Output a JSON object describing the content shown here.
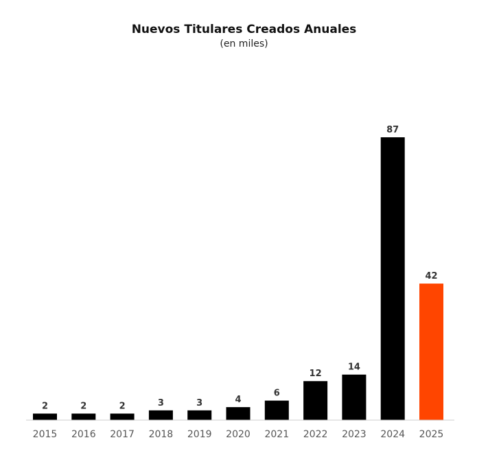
{
  "chart_data": {
    "type": "bar",
    "title": "Nuevos Titulares Creados Anuales",
    "subtitle": "(en miles)",
    "xlabel": "",
    "ylabel": "",
    "categories": [
      "2015",
      "2016",
      "2017",
      "2018",
      "2019",
      "2020",
      "2021",
      "2022",
      "2023",
      "2024",
      "2025"
    ],
    "values": [
      2,
      2,
      2,
      3,
      3,
      4,
      6,
      12,
      14,
      87,
      42
    ],
    "ylim": [
      0,
      87
    ],
    "grid": false,
    "legend": "none",
    "colors": {
      "default": "#000000",
      "highlight": "#ff4500",
      "axis": "#cccccc",
      "label": "#333333",
      "tick": "#555555"
    },
    "highlight_index": 10
  }
}
